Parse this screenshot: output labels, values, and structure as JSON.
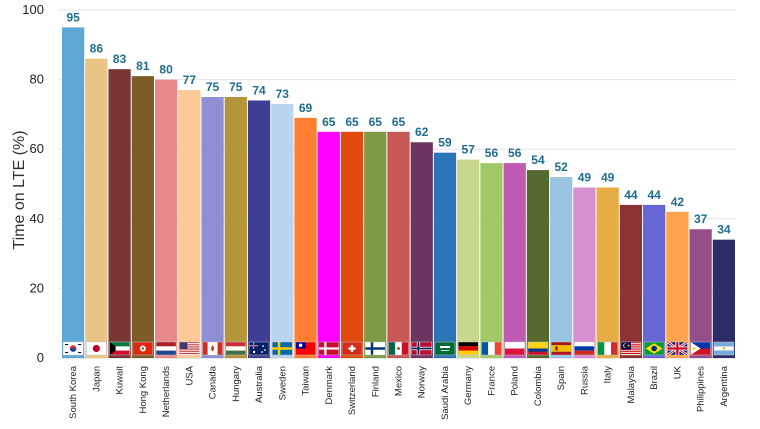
{
  "chart_data": {
    "type": "bar",
    "title": "",
    "xlabel": "",
    "ylabel": "Time on LTE (%)",
    "ylim": [
      0,
      100
    ],
    "yticks": [
      0,
      20,
      40,
      60,
      80,
      100
    ],
    "grid": true,
    "legend": "none",
    "categories": [
      "South Korea",
      "Japan",
      "Kuwait",
      "Hong Kong",
      "Netherlands",
      "USA",
      "Canada",
      "Hungary",
      "Australia",
      "Sweden",
      "Taiwan",
      "Denmark",
      "Switzerland",
      "Finland",
      "Mexico",
      "Norway",
      "Saudi Arabia",
      "Germany",
      "France",
      "Poland",
      "Colombia",
      "Spain",
      "Russia",
      "Italy",
      "Malaysia",
      "Brazil",
      "UK",
      "Philippines",
      "Argentina"
    ],
    "values": [
      95,
      86,
      83,
      81,
      80,
      77,
      75,
      75,
      74,
      73,
      69,
      65,
      65,
      65,
      65,
      62,
      59,
      57,
      56,
      56,
      54,
      52,
      49,
      49,
      44,
      44,
      42,
      37,
      34
    ],
    "colors": [
      "#5fa8d3",
      "#e8c587",
      "#7a3535",
      "#7e5c2a",
      "#e88a8a",
      "#ffc998",
      "#8f8fd6",
      "#b5953a",
      "#3e3e94",
      "#b9d4ef",
      "#ff7f32",
      "#ff00ff",
      "#e04a0e",
      "#7e9a46",
      "#c85858",
      "#6e3460",
      "#2b74b5",
      "#c6d88e",
      "#a2c86a",
      "#c05ab5",
      "#55682e",
      "#9bc4e2",
      "#d890d0",
      "#e6ac45",
      "#8c3434",
      "#6666d6",
      "#ffa24d",
      "#964e8a",
      "#2c2c66"
    ],
    "flag_icons": [
      "flag-south-korea-icon",
      "flag-japan-icon",
      "flag-kuwait-icon",
      "flag-hong-kong-icon",
      "flag-netherlands-icon",
      "flag-usa-icon",
      "flag-canada-icon",
      "flag-hungary-icon",
      "flag-australia-icon",
      "flag-sweden-icon",
      "flag-taiwan-icon",
      "flag-denmark-icon",
      "flag-switzerland-icon",
      "flag-finland-icon",
      "flag-mexico-icon",
      "flag-norway-icon",
      "flag-saudi-arabia-icon",
      "flag-germany-icon",
      "flag-france-icon",
      "flag-poland-icon",
      "flag-colombia-icon",
      "flag-spain-icon",
      "flag-russia-icon",
      "flag-italy-icon",
      "flag-malaysia-icon",
      "flag-brazil-icon",
      "flag-uk-icon",
      "flag-philippines-icon",
      "flag-argentina-icon"
    ]
  }
}
